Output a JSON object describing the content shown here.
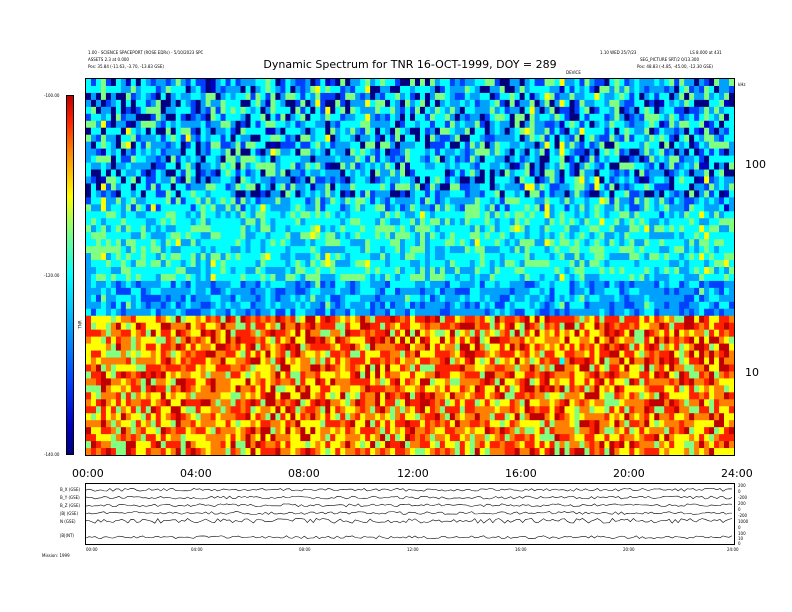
{
  "header": {
    "left_line1": "1.00 - SCIENCE SPACEPORT (ROSE EDRs) - 5/10/2023 SPC",
    "left_line2": "ASSETS 2.3 at 0.000",
    "left_line3": "Pos: 35.84 (-11.63, -3.70, -13.83 GSE)",
    "right_line1": "1.10 WED 25/7/23",
    "right_line2": "LS 8.000 at 431",
    "right_line3": "SEG_PICTURE SRT/2 0/13.300",
    "right_line4": "Pos: 48.83 (-4.85, -45.00, -12.30 GSE)",
    "mid_marker": "DEVICE",
    "y_unit": "kHz"
  },
  "chart_data": {
    "type": "heatmap",
    "title": "Dynamic Spectrum for TNR 16-OCT-1999, DOY = 289",
    "x_ticks": [
      "00:00",
      "04:00",
      "08:00",
      "12:00",
      "16:00",
      "20:00",
      "24:00"
    ],
    "y_right_ticks": [
      "100",
      "10"
    ],
    "y_scale": "log",
    "colorbar_ticks": [
      "-100.00",
      "-120.00",
      "-140.00"
    ],
    "colorbar_label": "TNR",
    "colormap": [
      "#000080",
      "#0000c0",
      "#0040ff",
      "#00a0ff",
      "#00ffff",
      "#80ff80",
      "#ffff00",
      "#ff8000",
      "#ff2000",
      "#c00000"
    ]
  },
  "time_series": {
    "labels": [
      "B_X (GSE)",
      "B_Y (GSE)",
      "B_Z (GSE)",
      "|B| (GSE)",
      "N (GSE)",
      "|B|(NT)"
    ],
    "right_scale": [
      "200",
      "0",
      "-200",
      "200",
      "0",
      "-200",
      "1000",
      "0",
      "100",
      "10",
      "0"
    ],
    "x_ticks": [
      "00:00",
      "04:00",
      "08:00",
      "12:00",
      "16:00",
      "20:00",
      "24:00"
    ],
    "footer": "Mission: 1999"
  }
}
